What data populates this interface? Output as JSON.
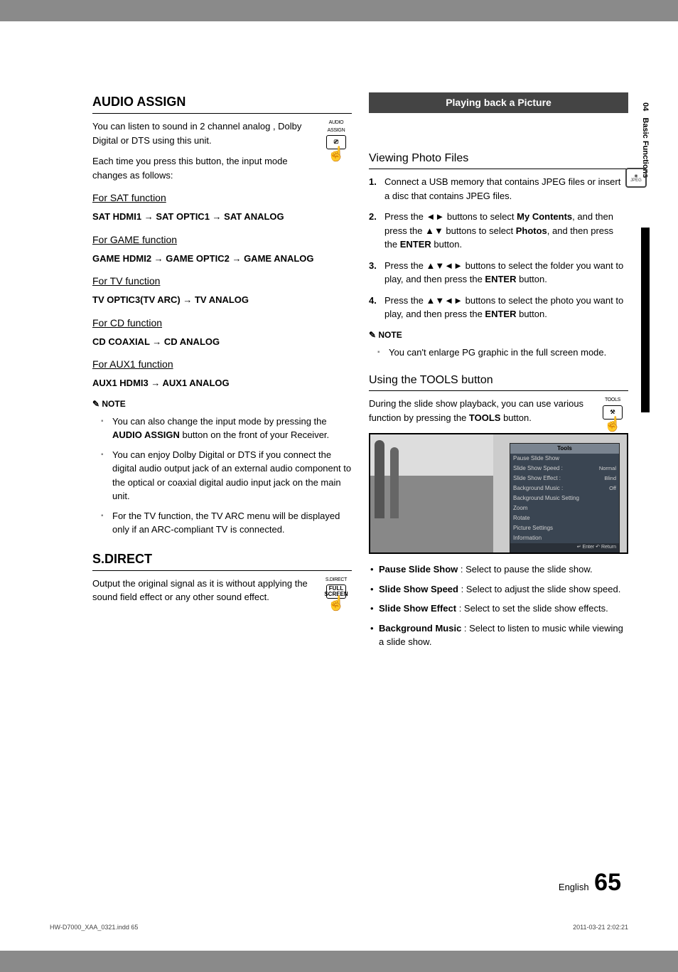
{
  "side": {
    "chapter": "04",
    "title": "Basic Functions"
  },
  "left": {
    "audioAssign": {
      "title": "AUDIO ASSIGN",
      "iconLabel": "AUDIO ASSIGN",
      "p1": "You can listen to sound in 2 channel analog , Dolby Digital or DTS using this unit.",
      "p2": "Each time you press this button, the input mode changes as follows:",
      "sat": {
        "h": "For SAT function",
        "t": "SAT HDMI1 → SAT OPTIC1 → SAT ANALOG"
      },
      "game": {
        "h": "For GAME function",
        "t": "GAME HDMI2 → GAME OPTIC2 → GAME ANALOG"
      },
      "tv": {
        "h": "For TV function",
        "t": "TV OPTIC3(TV ARC) → TV ANALOG"
      },
      "cd": {
        "h": "For CD function",
        "t": "CD COAXIAL → CD ANALOG"
      },
      "aux": {
        "h": "For AUX1 function",
        "t": "AUX1 HDMI3 → AUX1 ANALOG"
      },
      "noteLabel": "NOTE",
      "notes": {
        "n1a": "You can also change the input mode by pressing the ",
        "n1b": "AUDIO ASSIGN",
        "n1c": " button on the front of your Receiver.",
        "n2": "You can enjoy Dolby Digital or DTS if you connect the digital audio output jack of an external audio component to the optical or coaxial digital audio input jack on the main unit.",
        "n3": "For the TV function, the TV ARC menu will be displayed only if an ARC-compliant TV is connected."
      }
    },
    "sdirect": {
      "title": "S.DIRECT",
      "iconLabel": "S.DIRECT",
      "iconBox": "FULL SCREEN",
      "p": "Output the original signal as it is without applying the sound field effect or any other sound effect."
    }
  },
  "right": {
    "banner": "Playing back a Picture",
    "jpeg": {
      "icon": "◉",
      "label": "JPEG"
    },
    "viewing": {
      "title": "Viewing Photo Files",
      "steps": {
        "s1": "Connect a USB memory that contains JPEG files or insert a disc that contains JPEG files.",
        "s2a": "Press the ◄► buttons to select ",
        "s2b": "My Contents",
        "s2c": ", and then press the ▲▼ buttons to select ",
        "s2d": "Photos",
        "s2e": ", and then press the ",
        "s2f": "ENTER",
        "s2g": " button.",
        "s3a": "Press the ▲▼◄► buttons to select the folder you want to play, and then press the ",
        "s3b": "ENTER",
        "s3c": " button.",
        "s4a": "Press the ▲▼◄► buttons to select the photo you want to play, and then press the ",
        "s4b": "ENTER",
        "s4c": " button."
      },
      "noteLabel": "NOTE",
      "note1": "You can't enlarge PG graphic in the full screen mode."
    },
    "tools": {
      "title": "Using the TOOLS button",
      "iconLabel": "TOOLS",
      "p1a": "During the slide show playback, you can use various function by pressing the ",
      "p1b": "TOOLS",
      "p1c": " button.",
      "menu": {
        "title": "Tools",
        "rows": [
          {
            "k": "Pause Slide Show",
            "v": ""
          },
          {
            "k": "Slide Show Speed   :",
            "v": "Normal"
          },
          {
            "k": "Slide Show Effect   :",
            "v": "Blind"
          },
          {
            "k": "Background Music  :",
            "v": "Off"
          },
          {
            "k": "Background Music Setting",
            "v": ""
          },
          {
            "k": "Zoom",
            "v": ""
          },
          {
            "k": "Rotate",
            "v": ""
          },
          {
            "k": "Picture Settings",
            "v": ""
          },
          {
            "k": "Information",
            "v": ""
          }
        ],
        "foot": "↵ Enter   ↶ Return"
      },
      "items": {
        "i1b": "Pause Slide Show",
        "i1": " : Select to pause the slide show.",
        "i2b": "Slide Show Speed",
        "i2": " : Select to adjust the slide show speed.",
        "i3b": "Slide Show Effect",
        "i3": " : Select to set the slide show effects.",
        "i4b": "Background Music",
        "i4": " : Select to listen to music while viewing a slide show."
      }
    }
  },
  "footer": {
    "lang": "English",
    "num": "65",
    "file": "HW-D7000_XAA_0321.indd   65",
    "ts": "2011-03-21   2:02:21"
  }
}
